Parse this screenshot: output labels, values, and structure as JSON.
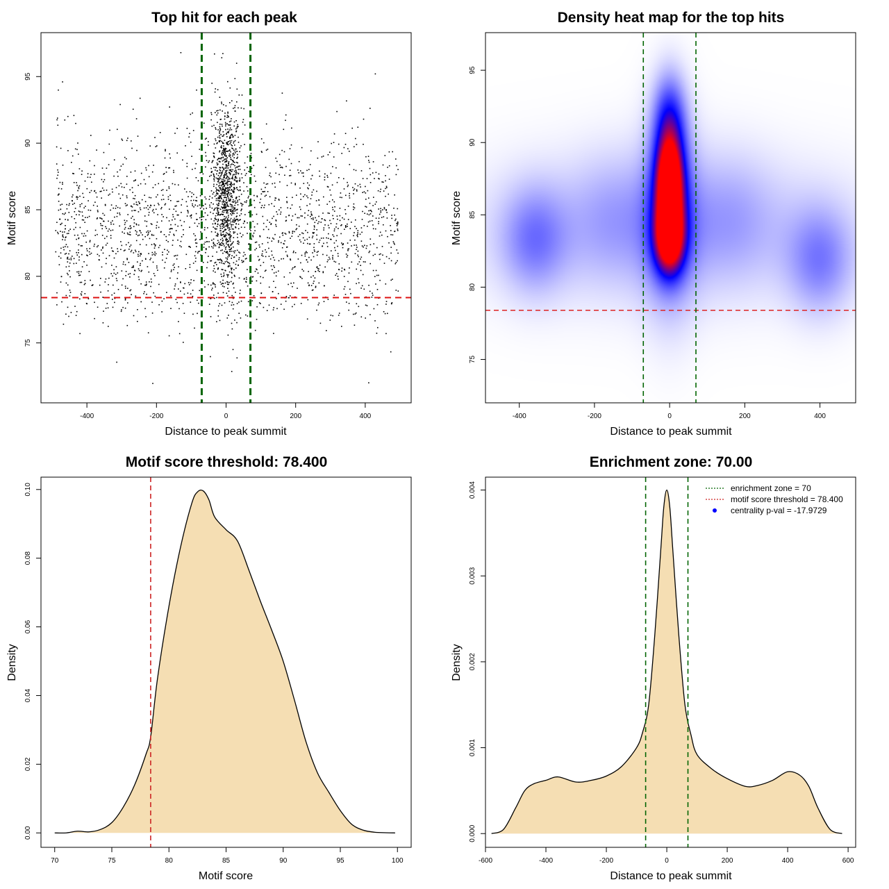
{
  "chart_data": [
    {
      "id": "scatter",
      "type": "scatter",
      "title": "Top hit for each peak",
      "xlabel": "Distance to peak summit",
      "ylabel": "Motif score",
      "xlim": [
        -532,
        532
      ],
      "ylim": [
        70.5,
        98.3
      ],
      "x_ticks": [
        -400,
        -200,
        0,
        200,
        400
      ],
      "x_tick_labels": [
        "-400",
        "-200",
        "0",
        "200",
        "400"
      ],
      "y_ticks": [
        75,
        80,
        85,
        90,
        95
      ],
      "y_tick_labels": [
        "75",
        "80",
        "85",
        "90",
        "95"
      ],
      "threshold": 78.4,
      "enrichment_zone": [
        -70,
        70
      ],
      "threshold_color": "#dd1111",
      "zone_color": "#006400",
      "point_color": "#000000",
      "point_groups": [
        {
          "name": "central",
          "x_center": 0,
          "x_sd": 22,
          "y_center": 86.5,
          "y_sd": 3.4,
          "count": 950
        },
        {
          "name": "background",
          "x_range": [
            -490,
            495
          ],
          "y_center": 83.5,
          "y_sd": 3.6,
          "count": 2100
        }
      ],
      "outlier_points": [
        [
          410,
          72.0
        ],
        [
          -420,
          75.7
        ],
        [
          460,
          75.7
        ],
        [
          20,
          74.5
        ],
        [
          -130,
          96.8
        ],
        [
          -470,
          94.6
        ]
      ]
    },
    {
      "id": "heatmap",
      "type": "heatmap",
      "title": "Density heat map for the top hits",
      "xlabel": "Distance to peak summit",
      "ylabel": "Motif score",
      "xlim": [
        -490,
        495
      ],
      "ylim": [
        72,
        97.6
      ],
      "x_ticks": [
        -400,
        -200,
        0,
        200,
        400
      ],
      "x_tick_labels": [
        "-400",
        "-200",
        "0",
        "200",
        "400"
      ],
      "y_ticks": [
        75,
        80,
        85,
        90,
        95
      ],
      "y_tick_labels": [
        "75",
        "80",
        "85",
        "90",
        "95"
      ],
      "threshold": 78.4,
      "enrichment_zone": [
        -70,
        70
      ],
      "threshold_color": "#dd2222",
      "zone_color": "#006400",
      "color_scale": [
        "#ffffff",
        "#0000ff",
        "#ff0000"
      ],
      "density_components": [
        {
          "x": 0,
          "y": 87.2,
          "sx": 26,
          "sy": 2.2,
          "w": 1.0
        },
        {
          "x": 0,
          "y": 83.3,
          "sx": 28,
          "sy": 1.7,
          "w": 0.85
        },
        {
          "x": 0,
          "y": 91.5,
          "sx": 30,
          "sy": 2.2,
          "w": 0.42
        },
        {
          "x": 0,
          "y": 85.0,
          "sx": 50,
          "sy": 4.5,
          "w": 0.3
        },
        {
          "x": -360,
          "y": 83.3,
          "sx": 60,
          "sy": 2.5,
          "w": 0.24
        },
        {
          "x": 400,
          "y": 81.8,
          "sx": 60,
          "sy": 2.5,
          "w": 0.24
        },
        {
          "x": 0,
          "y": 84.0,
          "sx": 350,
          "sy": 3.5,
          "w": 0.14
        },
        {
          "x": -150,
          "y": 85.0,
          "sx": 80,
          "sy": 3.0,
          "w": 0.1
        },
        {
          "x": 160,
          "y": 85.0,
          "sx": 80,
          "sy": 3.0,
          "w": 0.1
        }
      ]
    },
    {
      "id": "score-density",
      "type": "area",
      "title": "Motif score threshold: 78.400",
      "xlabel": "Motif score",
      "ylabel": "Density",
      "xlim": [
        68.8,
        101.2
      ],
      "ylim": [
        -0.0042,
        0.1036
      ],
      "x_ticks": [
        70,
        75,
        80,
        85,
        90,
        95,
        100
      ],
      "x_tick_labels": [
        "70",
        "75",
        "80",
        "85",
        "90",
        "95",
        "100"
      ],
      "y_ticks": [
        0,
        0.02,
        0.04,
        0.06,
        0.08,
        0.1
      ],
      "y_tick_labels": [
        "0.00",
        "0.02",
        "0.04",
        "0.06",
        "0.08",
        "0.10"
      ],
      "threshold": 78.4,
      "threshold_color": "#cc2222",
      "fill_color": "#f5deb3",
      "x": [
        70,
        71,
        72,
        73,
        74,
        75,
        76,
        77,
        78,
        78.4,
        79,
        80,
        81,
        82,
        82.5,
        83,
        83.5,
        84,
        85,
        86,
        87,
        88,
        89,
        90,
        91,
        92,
        93,
        94,
        95,
        96,
        97,
        98,
        99,
        99.8
      ],
      "y": [
        0,
        0,
        0.0005,
        0.0003,
        0.001,
        0.003,
        0.0075,
        0.014,
        0.023,
        0.028,
        0.045,
        0.066,
        0.083,
        0.096,
        0.0993,
        0.0996,
        0.097,
        0.092,
        0.0883,
        0.085,
        0.0765,
        0.0675,
        0.059,
        0.05,
        0.0385,
        0.0265,
        0.0175,
        0.0118,
        0.0065,
        0.0025,
        0.0008,
        0.0002,
        5e-05,
        0
      ]
    },
    {
      "id": "distance-density",
      "type": "area",
      "title": "Enrichment zone: 70.00",
      "xlabel": "Distance to peak summit",
      "ylabel": "Density",
      "xlim": [
        -600,
        625
      ],
      "ylim": [
        -0.00016,
        0.00415
      ],
      "x_ticks": [
        -600,
        -400,
        -200,
        0,
        200,
        400,
        600
      ],
      "x_tick_labels": [
        "-600",
        "-400",
        "-200",
        "0",
        "200",
        "400",
        "600"
      ],
      "y_ticks": [
        0,
        0.001,
        0.002,
        0.003,
        0.004
      ],
      "y_tick_labels": [
        "0.000",
        "0.001",
        "0.002",
        "0.003",
        "0.004"
      ],
      "enrichment_zone": [
        -70,
        70
      ],
      "zone_color": "#006400",
      "fill_color": "#f5deb3",
      "x": [
        -580,
        -540,
        -500,
        -470,
        -440,
        -400,
        -360,
        -300,
        -250,
        -200,
        -150,
        -100,
        -80,
        -60,
        -40,
        -20,
        -10,
        0,
        10,
        20,
        40,
        60,
        80,
        100,
        150,
        200,
        260,
        300,
        350,
        400,
        440,
        470,
        500,
        540,
        580
      ],
      "y": [
        0,
        5e-05,
        0.0003,
        0.0005,
        0.00058,
        0.00062,
        0.00066,
        0.0006,
        0.00062,
        0.00067,
        0.00078,
        0.001,
        0.00118,
        0.0015,
        0.0023,
        0.0033,
        0.0038,
        0.004,
        0.0038,
        0.0033,
        0.0023,
        0.0015,
        0.00115,
        0.00092,
        0.00075,
        0.00064,
        0.00055,
        0.00056,
        0.00062,
        0.00072,
        0.00068,
        0.00055,
        0.0003,
        5e-05,
        0
      ],
      "legend": {
        "position": "top-right",
        "entries": [
          {
            "label": "enrichment zone = 70",
            "marker": "dotted-line",
            "color": "#006400"
          },
          {
            "label": "motif score threshold = 78.400",
            "marker": "dotted-line",
            "color": "#cc2222"
          },
          {
            "label": "centrality p-val = -17.9729",
            "marker": "point",
            "color": "#0000ff"
          }
        ]
      }
    }
  ]
}
